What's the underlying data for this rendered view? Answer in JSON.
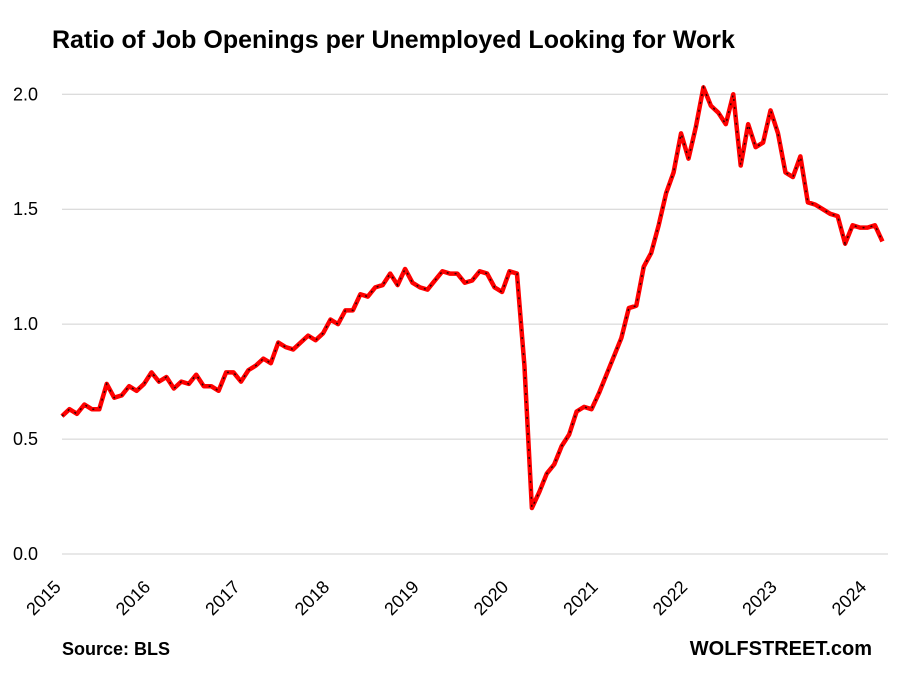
{
  "chart_data": {
    "type": "line",
    "title": "Ratio of Job Openings per Unemployed Looking for Work",
    "source": "Source: BLS",
    "credit": "WOLFSTREET.com",
    "categories": [
      "2015",
      null,
      null,
      null,
      null,
      null,
      null,
      null,
      null,
      null,
      null,
      null,
      "2016",
      null,
      null,
      null,
      null,
      null,
      null,
      null,
      null,
      null,
      null,
      null,
      "2017",
      null,
      null,
      null,
      null,
      null,
      null,
      null,
      null,
      null,
      null,
      null,
      "2018",
      null,
      null,
      null,
      null,
      null,
      null,
      null,
      null,
      null,
      null,
      null,
      "2019",
      null,
      null,
      null,
      null,
      null,
      null,
      null,
      null,
      null,
      null,
      null,
      "2020",
      null,
      null,
      null,
      null,
      null,
      null,
      null,
      null,
      null,
      null,
      null,
      "2021",
      null,
      null,
      null,
      null,
      null,
      null,
      null,
      null,
      null,
      null,
      null,
      "2022",
      null,
      null,
      null,
      null,
      null,
      null,
      null,
      null,
      null,
      null,
      null,
      "2023",
      null,
      null,
      null,
      null,
      null,
      null,
      null,
      null,
      null,
      null,
      null,
      "2024",
      null,
      null
    ],
    "series": [
      {
        "color": "#ff0000",
        "values": [
          0.6,
          0.63,
          0.61,
          0.65,
          0.63,
          0.63,
          0.74,
          0.68,
          0.69,
          0.73,
          0.71,
          0.74,
          0.79,
          0.75,
          0.77,
          0.72,
          0.75,
          0.74,
          0.78,
          0.73,
          0.73,
          0.71,
          0.79,
          0.79,
          0.75,
          0.8,
          0.82,
          0.85,
          0.83,
          0.92,
          0.9,
          0.89,
          0.92,
          0.95,
          0.93,
          0.96,
          1.02,
          1.0,
          1.06,
          1.06,
          1.13,
          1.12,
          1.16,
          1.17,
          1.22,
          1.17,
          1.24,
          1.18,
          1.16,
          1.15,
          1.19,
          1.23,
          1.22,
          1.22,
          1.18,
          1.19,
          1.23,
          1.22,
          1.16,
          1.14,
          1.23,
          1.22,
          0.82,
          0.2,
          0.27,
          0.35,
          0.39,
          0.47,
          0.52,
          0.62,
          0.64,
          0.63,
          0.7,
          0.78,
          0.86,
          0.94,
          1.07,
          1.08,
          1.25,
          1.31,
          1.43,
          1.57,
          1.66,
          1.83,
          1.72,
          1.86,
          2.03,
          1.95,
          1.92,
          1.87,
          2.0,
          1.69,
          1.87,
          1.77,
          1.79,
          1.93,
          1.83,
          1.66,
          1.64,
          1.73,
          1.53,
          1.52,
          1.5,
          1.48,
          1.47,
          1.35,
          1.43,
          1.42,
          1.42,
          1.43,
          1.36
        ]
      }
    ],
    "ylim": [
      0,
      2.1
    ],
    "yticks": [
      {
        "value": 0,
        "label": "0.0"
      },
      0.5,
      {
        "value": 1,
        "label": "1.0"
      },
      1.5,
      {
        "value": 2,
        "label": "2.0"
      }
    ],
    "grid": true
  }
}
